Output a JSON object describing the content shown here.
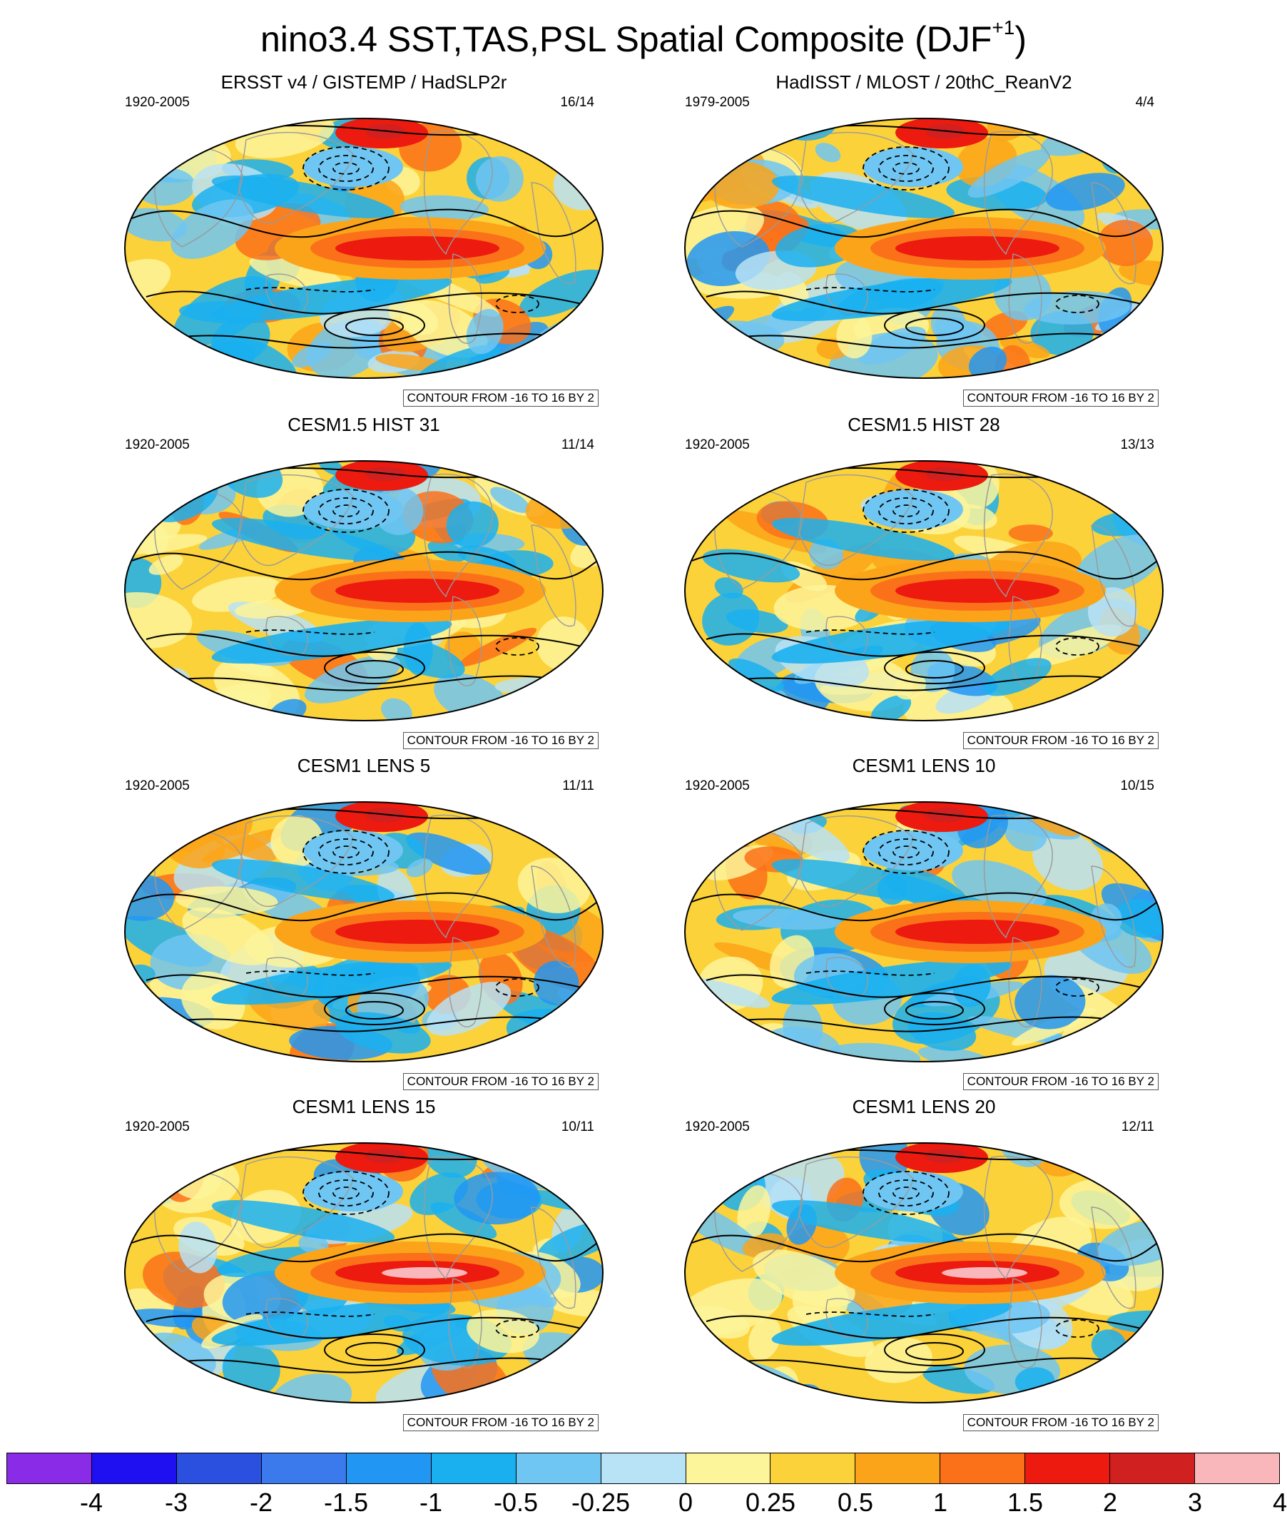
{
  "figure": {
    "title_main": "nino3.4 SST,TAS,PSL Spatial Composite (DJF",
    "title_sup": "+1",
    "title_close": ")"
  },
  "panels": [
    {
      "id": "obs1",
      "title": "ERSST v4 / GISTEMP / HadSLP2r",
      "years": "1920-2005",
      "count": "16/14",
      "contour_note": "CONTOUR FROM -16 TO 16 BY 2"
    },
    {
      "id": "obs2",
      "title": "HadISST / MLOST / 20thC_ReanV2",
      "years": "1979-2005",
      "count": "4/4",
      "contour_note": "CONTOUR FROM -16 TO 16 BY 2"
    },
    {
      "id": "cesm15_31",
      "title": "CESM1.5 HIST 31",
      "years": "1920-2005",
      "count": "11/14",
      "contour_note": "CONTOUR FROM -16 TO 16 BY 2"
    },
    {
      "id": "cesm15_28",
      "title": "CESM1.5 HIST 28",
      "years": "1920-2005",
      "count": "13/13",
      "contour_note": "CONTOUR FROM -16 TO 16 BY 2"
    },
    {
      "id": "lens5",
      "title": "CESM1 LENS 5",
      "years": "1920-2005",
      "count": "11/11",
      "contour_note": "CONTOUR FROM -16 TO 16 BY 2"
    },
    {
      "id": "lens10",
      "title": "CESM1 LENS 10",
      "years": "1920-2005",
      "count": "10/15",
      "contour_note": "CONTOUR FROM -16 TO 16 BY 2"
    },
    {
      "id": "lens15",
      "title": "CESM1 LENS 15",
      "years": "1920-2005",
      "count": "10/11",
      "contour_note": "CONTOUR FROM -16 TO 16 BY 2"
    },
    {
      "id": "lens20",
      "title": "CESM1 LENS 20",
      "years": "1920-2005",
      "count": "12/11",
      "contour_note": "CONTOUR FROM -16 TO 16 BY 2"
    }
  ],
  "chart_data": {
    "type": "heatmap",
    "title": "nino3.4 SST,TAS,PSL Spatial Composite (DJF+1)",
    "contour_info": "CONTOUR FROM -16 TO 16 BY 2",
    "colorbar": {
      "labels": [
        "-4",
        "-3",
        "-2",
        "-1.5",
        "-1",
        "-0.5",
        "-0.25",
        "0",
        "0.25",
        "0.5",
        "1",
        "1.5",
        "2",
        "3",
        "4"
      ],
      "colors": [
        "#8a2be8",
        "#1e10f0",
        "#2b50e0",
        "#3b7aec",
        "#2196f3",
        "#1ab0f0",
        "#6fc6f2",
        "#b8e2f6",
        "#fdf59a",
        "#fcd23a",
        "#fca419",
        "#fb711a",
        "#ec1a0f",
        "#d02020",
        "#f9b7bb"
      ]
    }
  }
}
